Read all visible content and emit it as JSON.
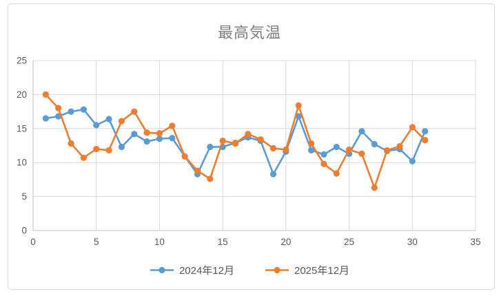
{
  "chart_data": {
    "type": "line",
    "title": "最高気温",
    "x": [
      1,
      2,
      3,
      4,
      5,
      6,
      7,
      8,
      9,
      10,
      11,
      12,
      13,
      14,
      15,
      16,
      17,
      18,
      19,
      20,
      21,
      22,
      23,
      24,
      25,
      26,
      27,
      28,
      29,
      30,
      31
    ],
    "series": [
      {
        "name": "2024年12月",
        "color": "#5B9BD5",
        "values": [
          16.5,
          16.8,
          17.5,
          17.8,
          15.5,
          16.4,
          12.3,
          14.2,
          13.1,
          13.5,
          13.6,
          10.9,
          8.3,
          12.3,
          12.3,
          12.9,
          13.7,
          13.2,
          8.3,
          11.6,
          16.8,
          11.8,
          11.2,
          12.3,
          11.3,
          14.6,
          12.7,
          11.7,
          12.0,
          10.2,
          14.6
        ]
      },
      {
        "name": "2025年12月",
        "color": "#ED7D31",
        "values": [
          20.0,
          18.0,
          12.8,
          10.7,
          12.0,
          11.8,
          16.1,
          17.5,
          14.4,
          14.3,
          15.4,
          10.9,
          8.8,
          7.6,
          13.2,
          12.8,
          14.2,
          13.4,
          12.1,
          11.9,
          18.4,
          12.8,
          9.8,
          8.4,
          11.9,
          11.3,
          6.3,
          11.8,
          12.4,
          15.2,
          13.3
        ]
      }
    ],
    "xlim": [
      0,
      35
    ],
    "ylim": [
      0,
      25
    ],
    "x_ticks": [
      0,
      5,
      10,
      15,
      20,
      25,
      30,
      35
    ],
    "y_ticks": [
      0,
      5,
      10,
      15,
      20,
      25
    ],
    "grid": true,
    "legend_position": "bottom",
    "gridline_color": "#D9D9D9",
    "axis_line_color": "#BFBFBF",
    "axis_text_color": "#595959",
    "title_color": "#7F7F7F",
    "marker": "circle",
    "marker_radius": 4.6,
    "line_width": 2.6
  }
}
